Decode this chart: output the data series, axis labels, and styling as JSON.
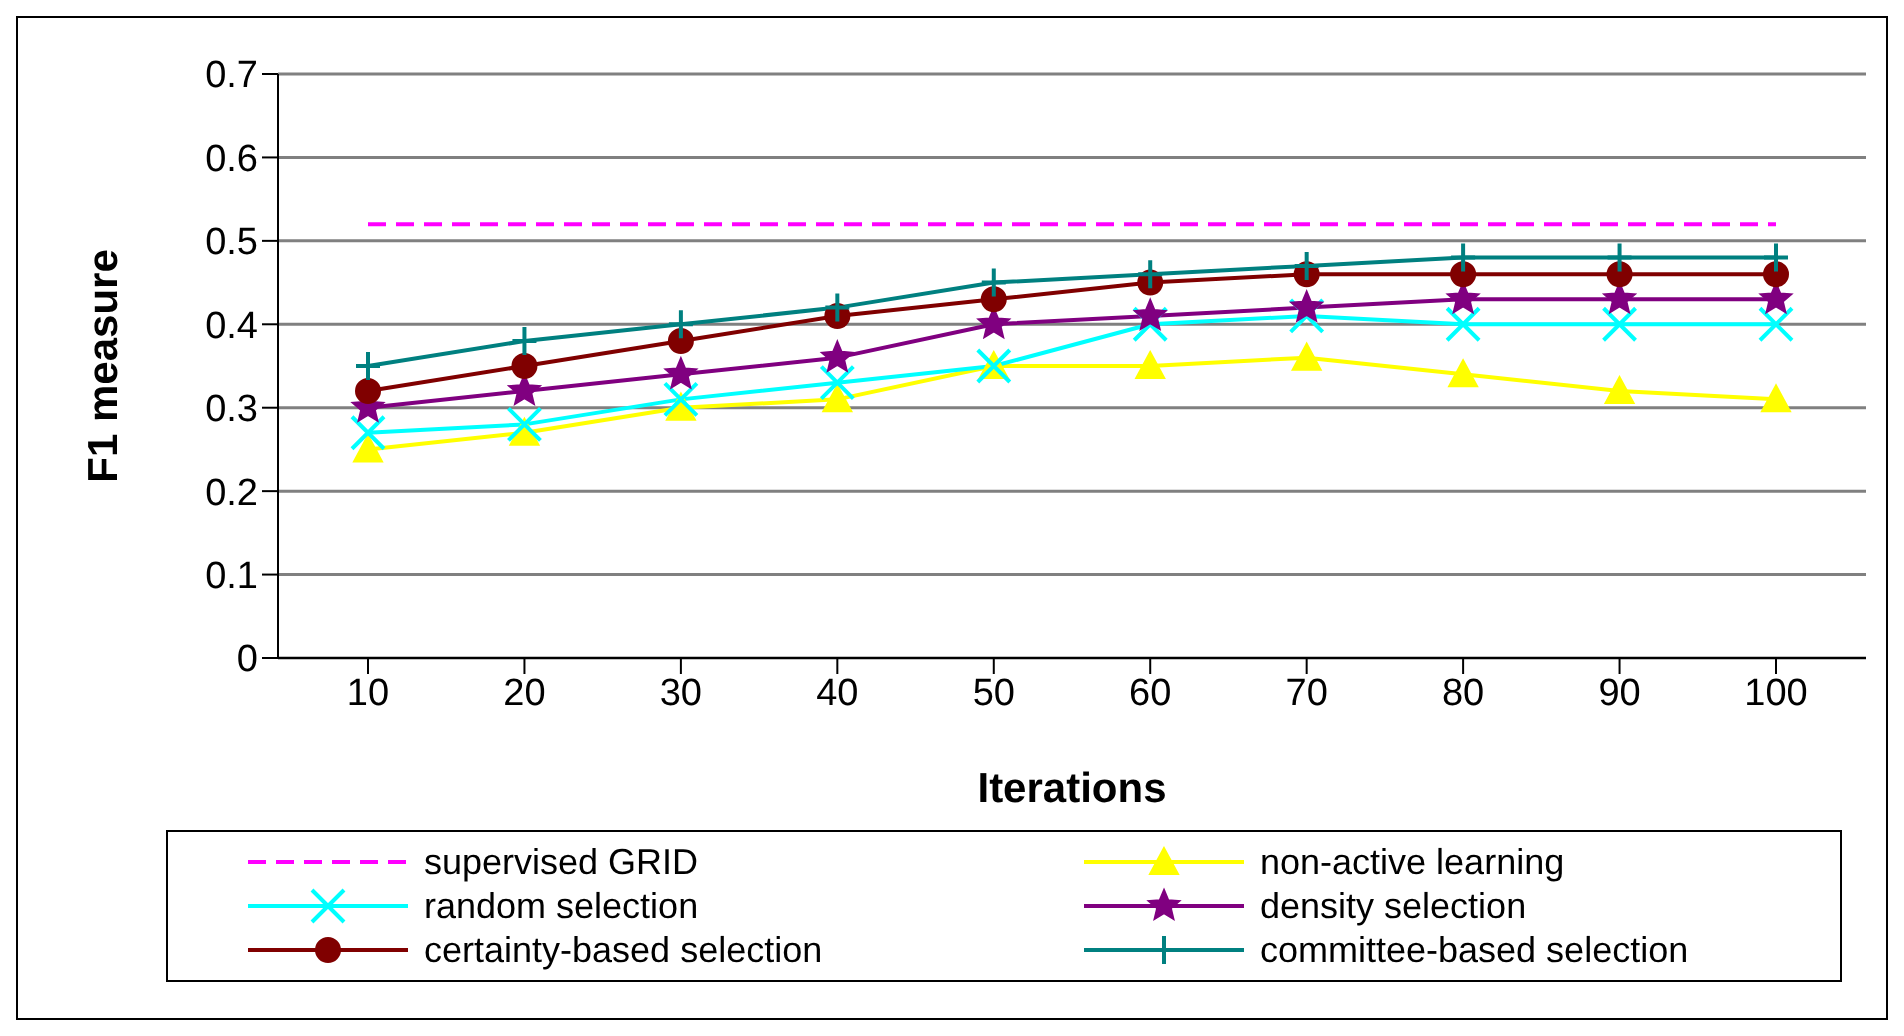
{
  "chart_data": {
    "type": "line",
    "xlabel": "Iterations",
    "ylabel": "F1 measure",
    "categories": [
      "10",
      "20",
      "30",
      "40",
      "50",
      "60",
      "70",
      "80",
      "90",
      "100"
    ],
    "ylim": [
      0,
      0.7
    ],
    "yticks": [
      0,
      0.1,
      0.2,
      0.3,
      0.4,
      0.5,
      0.6,
      0.7
    ],
    "grid": "y",
    "legend": "bottom",
    "series": [
      {
        "name": "supervised GRID",
        "color": "#ff00ff",
        "line_style": "dashed",
        "marker": "none",
        "values": [
          0.52,
          0.52,
          0.52,
          0.52,
          0.52,
          0.52,
          0.52,
          0.52,
          0.52,
          0.52
        ]
      },
      {
        "name": "non-active learning",
        "color": "#ffff00",
        "marker": "triangle",
        "values": [
          0.25,
          0.27,
          0.3,
          0.31,
          0.35,
          0.35,
          0.36,
          0.34,
          0.32,
          0.31
        ]
      },
      {
        "name": "random selection",
        "color": "#00ffff",
        "marker": "cross",
        "values": [
          0.27,
          0.28,
          0.31,
          0.33,
          0.35,
          0.4,
          0.41,
          0.4,
          0.4,
          0.4
        ]
      },
      {
        "name": "density selection",
        "color": "#800080",
        "marker": "star",
        "values": [
          0.3,
          0.32,
          0.34,
          0.36,
          0.4,
          0.41,
          0.42,
          0.43,
          0.43,
          0.43
        ]
      },
      {
        "name": "certainty-based selection",
        "color": "#800000",
        "marker": "circle",
        "values": [
          0.32,
          0.35,
          0.38,
          0.41,
          0.43,
          0.45,
          0.46,
          0.46,
          0.46,
          0.46
        ]
      },
      {
        "name": "committee-based selection",
        "color": "#008080",
        "marker": "plus",
        "values": [
          0.35,
          0.38,
          0.4,
          0.42,
          0.45,
          0.46,
          0.47,
          0.48,
          0.48,
          0.48
        ]
      }
    ]
  }
}
